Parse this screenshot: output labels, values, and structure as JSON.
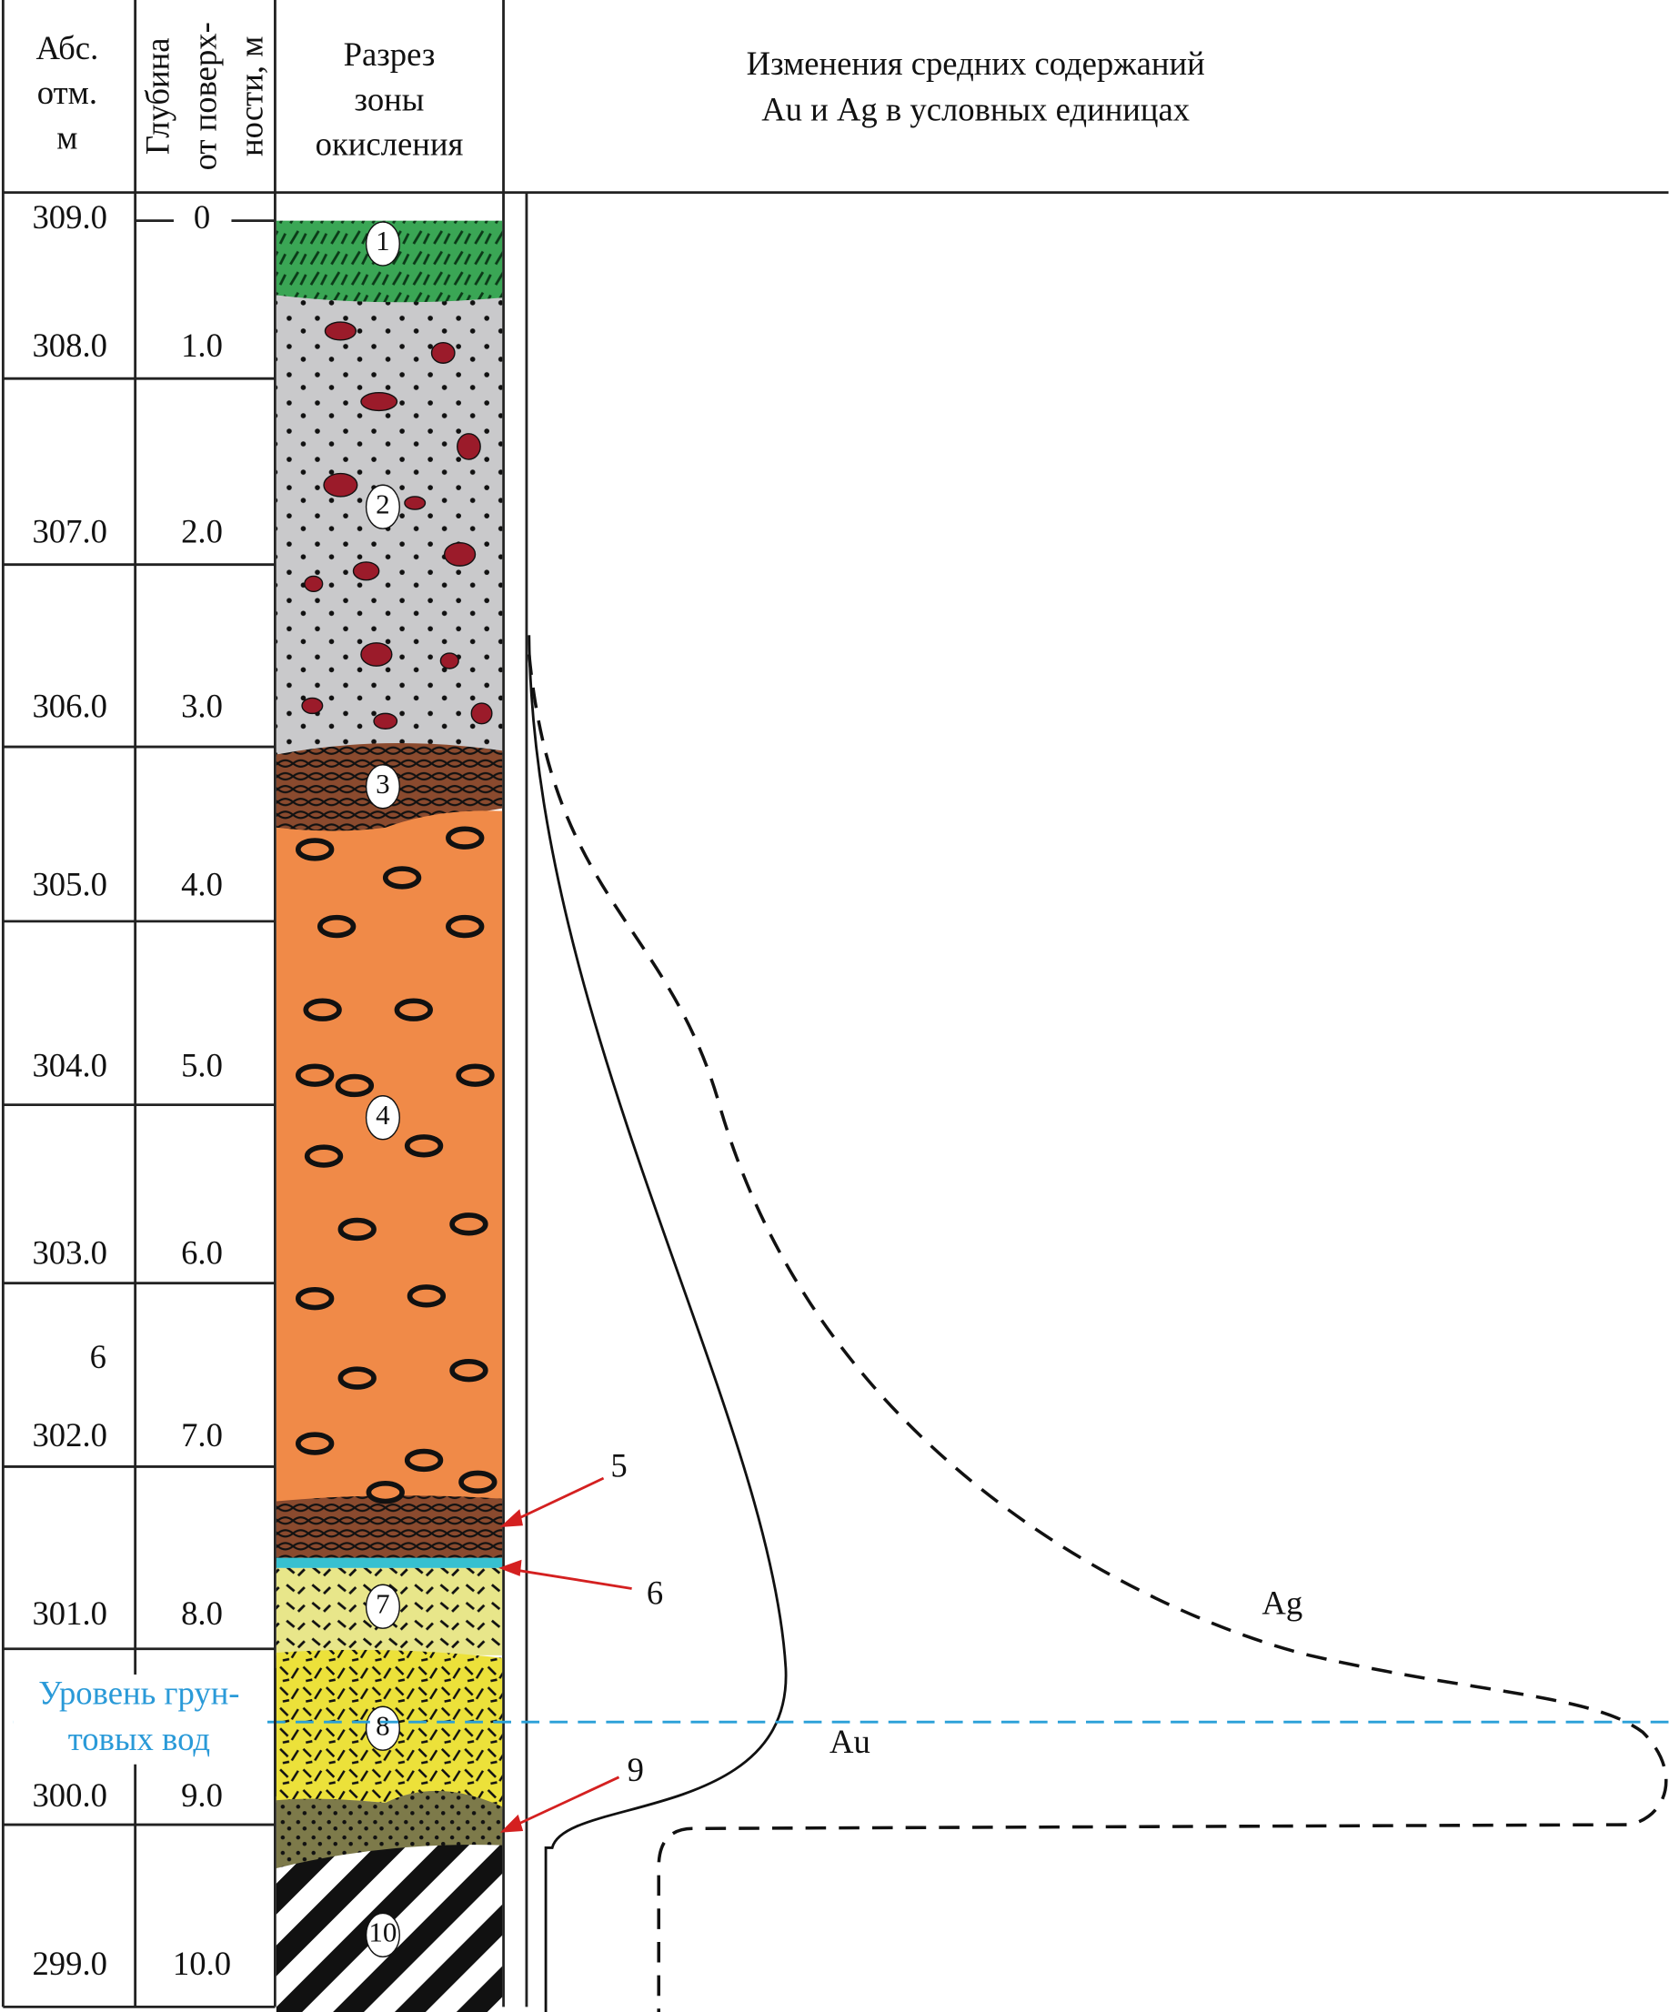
{
  "header": {
    "elevation": [
      "Абс.",
      "отм.",
      "м"
    ],
    "depth": [
      "Глубина",
      "от поверх-",
      "ности, м"
    ],
    "section": [
      "Разрез",
      "зоны",
      "окисления"
    ],
    "content": [
      "Изменения средних содержаний",
      "Au и Ag в условных единицах"
    ]
  },
  "rows": {
    "elevations": [
      "309.0",
      "308.0",
      "307.0",
      "306.0",
      "305.0",
      "304.0",
      "303.0",
      "302.0",
      "301.0",
      "300.0",
      "299.0"
    ],
    "depths": [
      "0",
      "1.0",
      "2.0",
      "3.0",
      "4.0",
      "5.0",
      "6.0",
      "7.0",
      "8.0",
      "9.0",
      "10.0"
    ]
  },
  "stray_label": "6",
  "layers": [
    "1",
    "2",
    "3",
    "4",
    "5",
    "6",
    "7",
    "8",
    "9",
    "10"
  ],
  "groundwater": [
    "Уровень грун-",
    "товых вод"
  ],
  "curves": {
    "au": "Au",
    "ag": "Ag"
  }
}
